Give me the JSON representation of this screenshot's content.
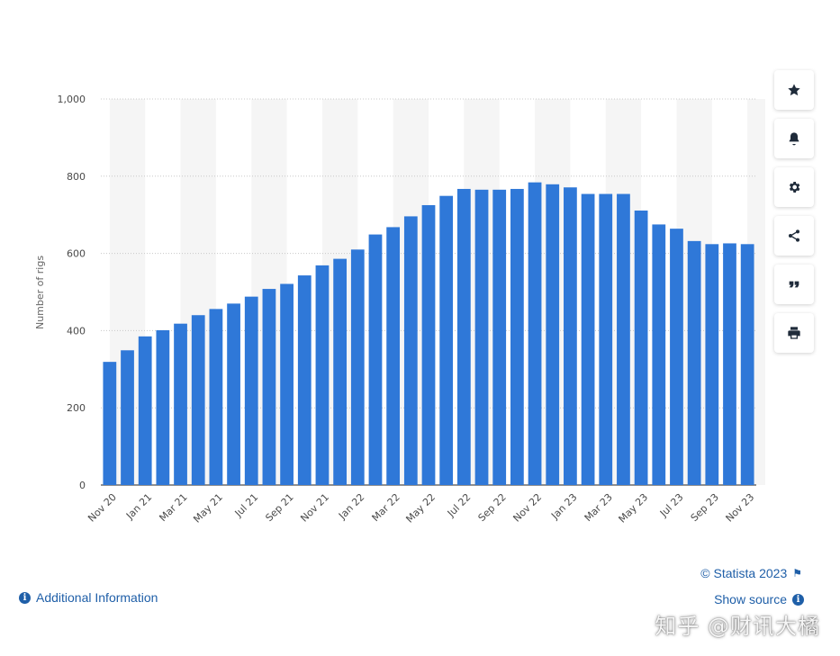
{
  "chart_data": {
    "type": "bar",
    "title": "",
    "xlabel": "",
    "ylabel": "Number of rigs",
    "ylim": [
      0,
      1000
    ],
    "yticks": [
      "0",
      "200",
      "400",
      "600",
      "800",
      "1,000"
    ],
    "grid": true,
    "legend": "none",
    "bar_color": "#2f78d8",
    "categories": [
      "Nov 20",
      "Dec 20",
      "Jan 21",
      "Feb 21",
      "Mar 21",
      "Apr 21",
      "May 21",
      "Jun 21",
      "Jul 21",
      "Aug 21",
      "Sep 21",
      "Oct 21",
      "Nov 21",
      "Dec 21",
      "Jan 22",
      "Feb 22",
      "Mar 22",
      "Apr 22",
      "May 22",
      "Jun 22",
      "Jul 22",
      "Aug 22",
      "Sep 22",
      "Oct 22",
      "Nov 22",
      "Dec 22",
      "Jan 23",
      "Feb 23",
      "Mar 23",
      "Apr 23",
      "May 23",
      "Jun 23",
      "Jul 23",
      "Aug 23",
      "Sep 23",
      "Oct 23",
      "Nov 23"
    ],
    "xtick_labels": [
      "Nov 20",
      "",
      "Jan 21",
      "",
      "Mar 21",
      "",
      "May 21",
      "",
      "Jul 21",
      "",
      "Sep 21",
      "",
      "Nov 21",
      "",
      "Jan 22",
      "",
      "Mar 22",
      "",
      "May 22",
      "",
      "Jul 22",
      "",
      "Sep 22",
      "",
      "Nov 22",
      "",
      "Jan 23",
      "",
      "Mar 23",
      "",
      "May 23",
      "",
      "Jul 23",
      "",
      "Sep 23",
      "",
      "Nov 23"
    ],
    "values": [
      319,
      349,
      385,
      401,
      418,
      440,
      456,
      470,
      488,
      508,
      521,
      543,
      569,
      586,
      610,
      649,
      668,
      696,
      725,
      749,
      767,
      765,
      765,
      767,
      784,
      779,
      771,
      754,
      754,
      754,
      711,
      675,
      664,
      632,
      624,
      626,
      624
    ]
  },
  "toolbar": {
    "items": [
      "star-icon",
      "bell-icon",
      "gear-icon",
      "share-icon",
      "quote-icon",
      "print-icon"
    ]
  },
  "footer": {
    "additional_info": "Additional Information",
    "copyright": "© Statista 2023",
    "show_source": "Show source",
    "watermark": "知乎 @财讯大橘"
  }
}
